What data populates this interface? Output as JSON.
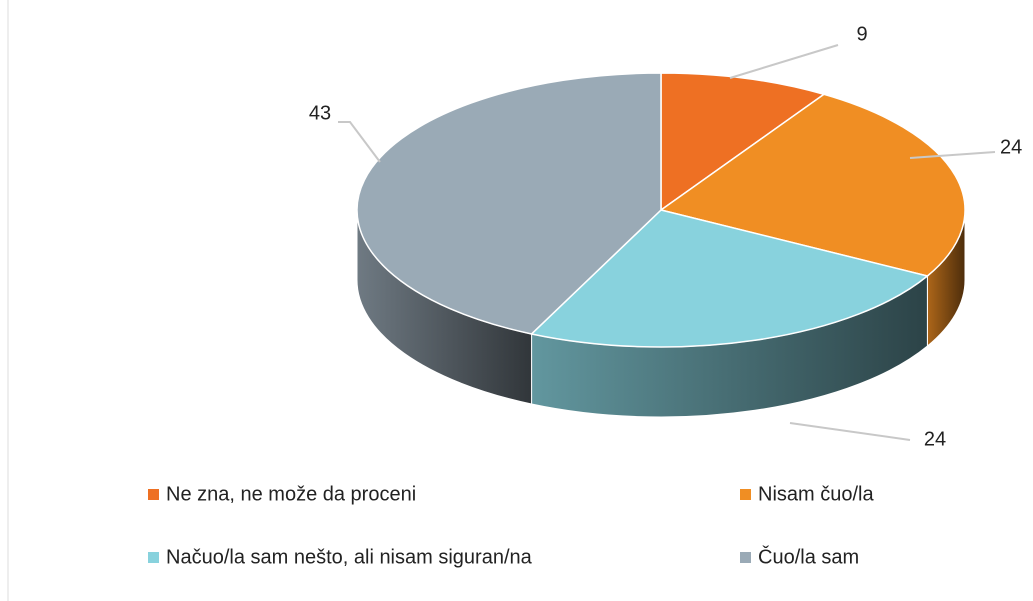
{
  "chart_data": {
    "type": "pie3d",
    "categories": [
      "Ne zna, ne može da proceni",
      "Nisam čuo/la",
      "Načuo/la sam nešto, ali nisam siguran/na",
      "Čuo/la sam"
    ],
    "values": [
      9,
      24,
      24,
      43
    ],
    "colors": [
      "#ee7023",
      "#f08e23",
      "#88d2dd",
      "#9aaab6"
    ]
  }
}
